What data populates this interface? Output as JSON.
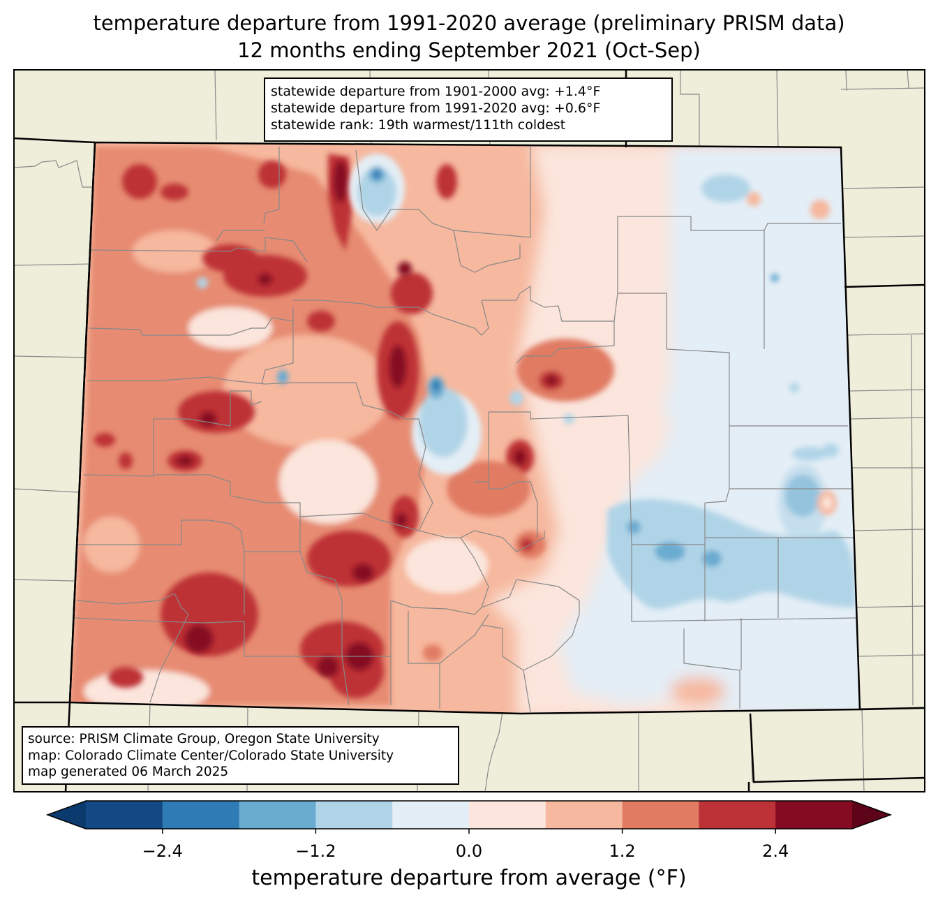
{
  "title": {
    "line1": "temperature departure from 1991-2020 average (preliminary PRISM data)",
    "line2": "12 months ending September 2021 (Oct-Sep)"
  },
  "stats_box": {
    "line1": "statewide departure from 1901-2000 avg: +1.4°F",
    "line2": "statewide departure from 1991-2020 avg: +0.6°F",
    "line3": "statewide rank: 19th warmest/111th coldest"
  },
  "credits_box": {
    "line1": "source: PRISM Climate Group, Oregon State University",
    "line2": "map: Colorado Climate Center/Colorado State University",
    "line3": "map generated 06 March 2025"
  },
  "colorbar": {
    "label": "temperature departure from average (°F)",
    "ticks": [
      "−2.4",
      "−1.2",
      "0.0",
      "1.2",
      "2.4"
    ],
    "tick_values": [
      -2.4,
      -1.2,
      0.0,
      1.2,
      2.4
    ],
    "range": [
      -3.0,
      3.0
    ],
    "step": 0.6,
    "colors": [
      "#0b3a6e",
      "#134a85",
      "#2f7bb6",
      "#6aabd0",
      "#b0d4e7",
      "#e4eef6",
      "#fbe5dc",
      "#f6b89e",
      "#e17c63",
      "#bd3236",
      "#850b23",
      "#5d0418"
    ]
  },
  "colors": {
    "land": "#efeedb",
    "state_border": "#000000",
    "county_border": "#888888"
  }
}
